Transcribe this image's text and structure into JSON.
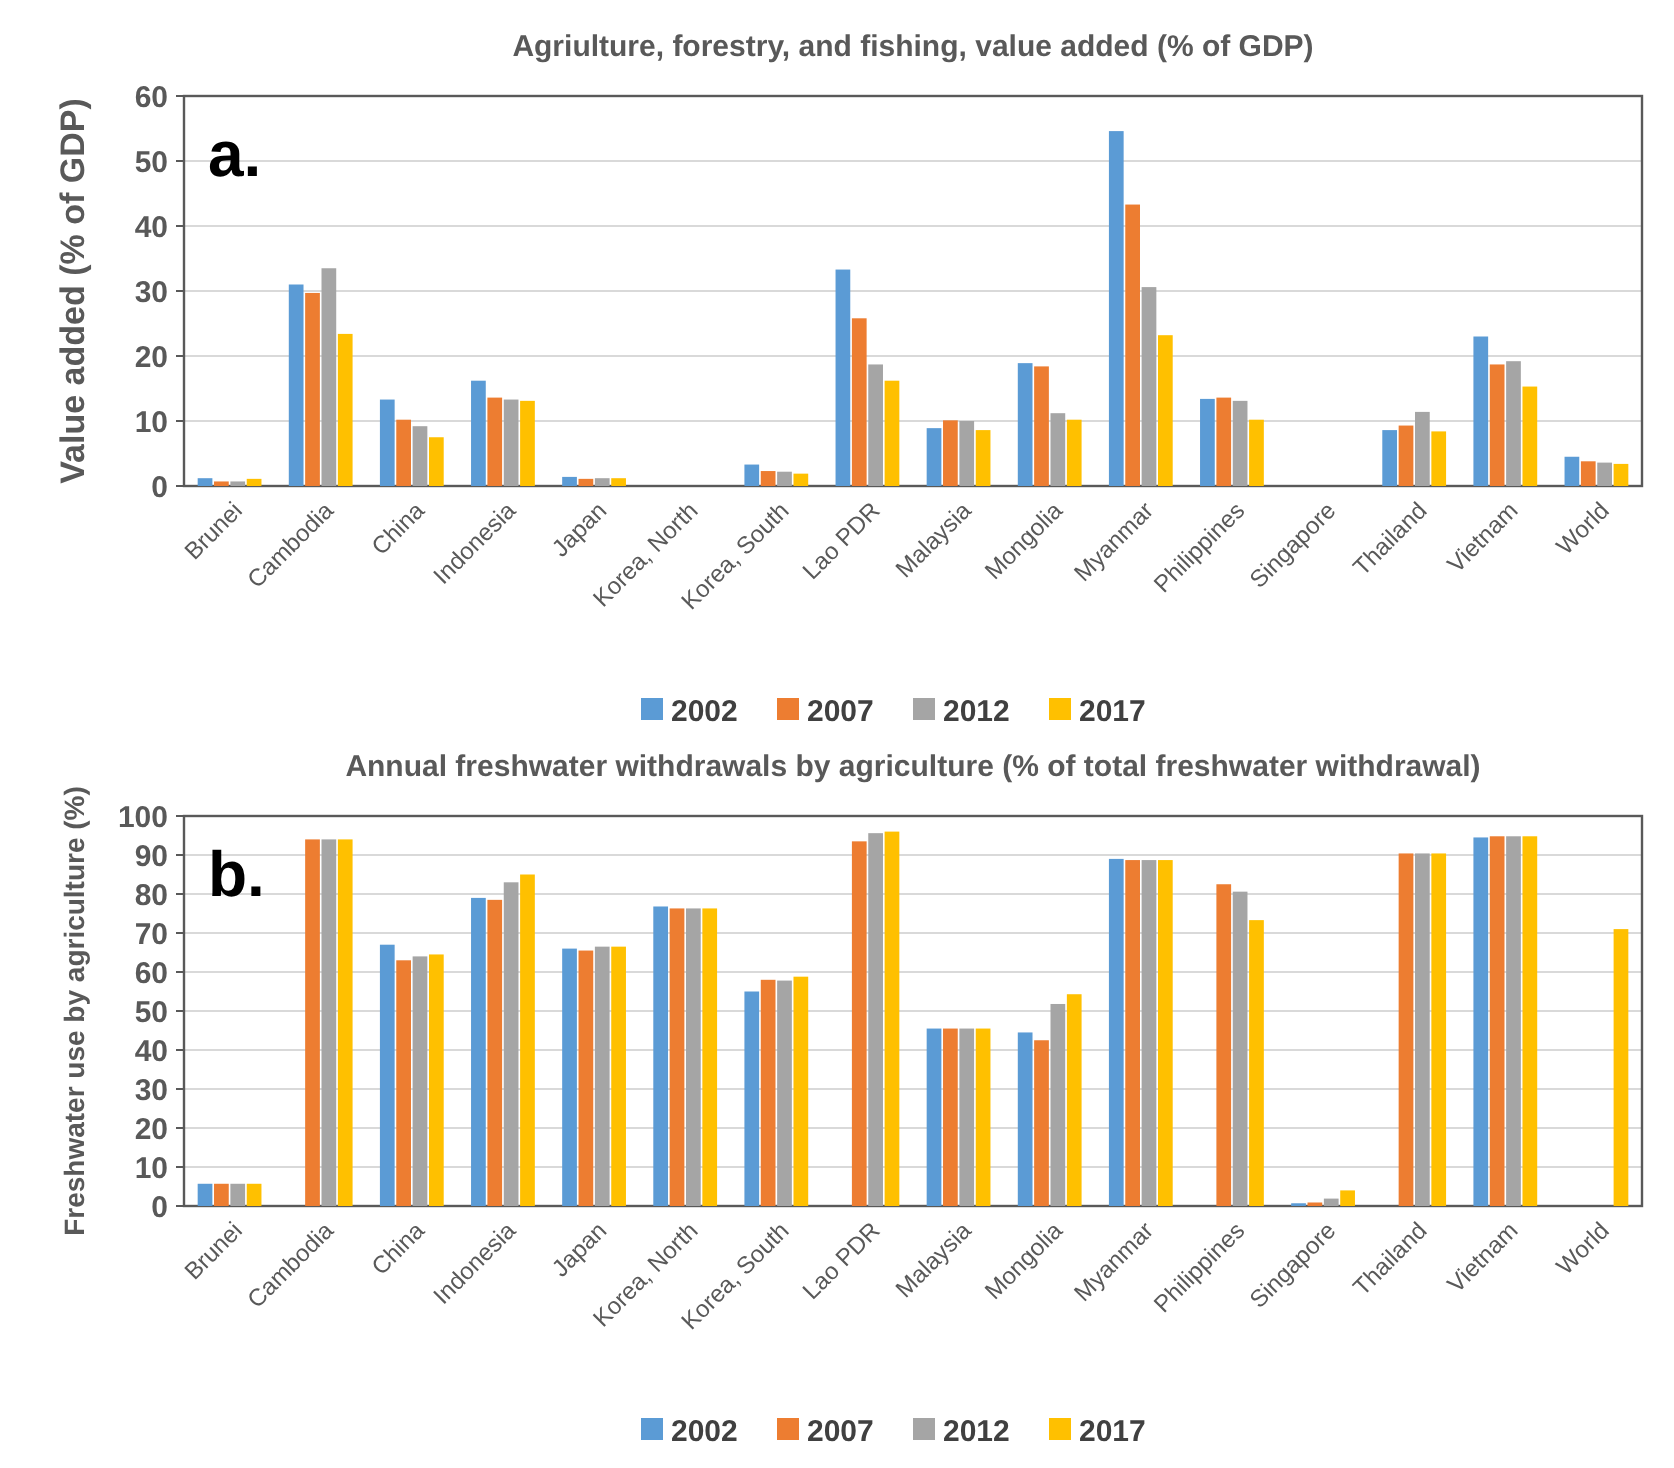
{
  "chart_data": [
    {
      "type": "bar",
      "title": "Agriulture, forestry, and fishing, value added (% of GDP)",
      "ylabel": "Value added (% of GDP)",
      "annotations": [
        "a."
      ],
      "categories": [
        "Brunei",
        "Cambodia",
        "China",
        "Indonesia",
        "Japan",
        "Korea, North",
        "Korea, South",
        "Lao PDR",
        "Malaysia",
        "Mongolia",
        "Myanmar",
        "Philippines",
        "Singapore",
        "Thailand",
        "Vietnam",
        "World"
      ],
      "series": [
        {
          "name": "2002",
          "color": "#5b9bd5",
          "values": [
            1.2,
            31,
            13.3,
            16.2,
            1.4,
            null,
            3.3,
            33.3,
            8.9,
            18.9,
            54.6,
            13.4,
            null,
            8.6,
            23,
            4.5
          ]
        },
        {
          "name": "2007",
          "color": "#ed7d31",
          "values": [
            0.7,
            29.7,
            10.2,
            13.6,
            1.1,
            null,
            2.3,
            25.8,
            10.1,
            18.4,
            43.3,
            13.6,
            null,
            9.3,
            18.7,
            3.8
          ]
        },
        {
          "name": "2012",
          "color": "#a5a5a5",
          "values": [
            0.7,
            33.5,
            9.2,
            13.3,
            1.2,
            null,
            2.2,
            18.7,
            10,
            11.2,
            30.6,
            13.1,
            null,
            11.4,
            19.2,
            3.6
          ]
        },
        {
          "name": "2017",
          "color": "#ffc000",
          "values": [
            1.1,
            23.4,
            7.5,
            13.1,
            1.2,
            null,
            1.9,
            16.2,
            8.6,
            10.2,
            23.2,
            10.2,
            null,
            8.4,
            15.3,
            3.4
          ]
        }
      ],
      "ylim": [
        0,
        60
      ],
      "yticks": [
        0,
        10,
        20,
        30,
        40,
        50,
        60
      ],
      "grid": "y",
      "legend": "bottom"
    },
    {
      "type": "bar",
      "title": "Annual freshwater withdrawals by agriculture (% of total freshwater withdrawal)",
      "ylabel": "Freshwater use by agriculture (%)",
      "annotations": [
        "b."
      ],
      "categories": [
        "Brunei",
        "Cambodia",
        "China",
        "Indonesia",
        "Japan",
        "Korea, North",
        "Korea, South",
        "Lao PDR",
        "Malaysia",
        "Mongolia",
        "Myanmar",
        "Philippines",
        "Singapore",
        "Thailand",
        "Vietnam",
        "World"
      ],
      "series": [
        {
          "name": "2002",
          "color": "#5b9bd5",
          "values": [
            5.7,
            null,
            67,
            79,
            66,
            76.8,
            55,
            null,
            45.5,
            44.5,
            89,
            null,
            0.7,
            null,
            94.5,
            null
          ]
        },
        {
          "name": "2007",
          "color": "#ed7d31",
          "values": [
            5.7,
            94,
            63,
            78.5,
            65.5,
            76.3,
            58,
            93.5,
            45.5,
            42.5,
            88.7,
            82.5,
            0.9,
            90.4,
            94.8,
            null
          ]
        },
        {
          "name": "2012",
          "color": "#a5a5a5",
          "values": [
            5.7,
            94,
            64,
            83,
            66.5,
            76.3,
            57.8,
            95.6,
            45.5,
            51.8,
            88.7,
            80.6,
            1.9,
            90.4,
            94.8,
            null
          ]
        },
        {
          "name": "2017",
          "color": "#ffc000",
          "values": [
            5.7,
            94,
            64.5,
            85,
            66.5,
            76.3,
            58.8,
            96,
            45.5,
            54.3,
            88.7,
            73.3,
            4,
            90.4,
            94.8,
            71
          ]
        }
      ],
      "ylim": [
        0,
        100
      ],
      "yticks": [
        0,
        10,
        20,
        30,
        40,
        50,
        60,
        70,
        80,
        90,
        100
      ],
      "grid": "y",
      "legend": "bottom"
    }
  ]
}
